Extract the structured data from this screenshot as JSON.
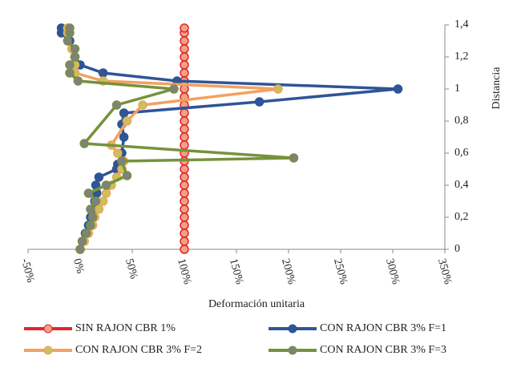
{
  "chart_data": {
    "type": "line",
    "xlabel": "Deformación unitaria",
    "ylabel": "Distancia",
    "xlim": [
      -50,
      350
    ],
    "xticks": [
      {
        "value": -50,
        "label": "-50%"
      },
      {
        "value": 0,
        "label": "0%"
      },
      {
        "value": 50,
        "label": "50%"
      },
      {
        "value": 100,
        "label": "100%"
      },
      {
        "value": 150,
        "label": "150%"
      },
      {
        "value": 200,
        "label": "200%"
      },
      {
        "value": 250,
        "label": "250%"
      },
      {
        "value": 300,
        "label": "300%"
      },
      {
        "value": 350,
        "label": "350%"
      }
    ],
    "ylim": [
      0,
      1.4
    ],
    "yticks": [
      0,
      {
        "value": 0.2,
        "label": "0,2"
      },
      {
        "value": 0.4,
        "label": "0,4"
      },
      {
        "value": 0.6,
        "label": "0,6"
      },
      {
        "value": 0.8,
        "label": "0,8"
      },
      1,
      {
        "value": 1.2,
        "label": "1,2"
      },
      {
        "value": 1.4,
        "label": "1,4"
      }
    ],
    "legend": "bottom",
    "series": [
      {
        "name": "SIN RAJON CBR  1%",
        "color": "#e3262b",
        "marker_color": "#f2a184",
        "x": [
          100,
          100,
          100,
          100,
          100,
          100,
          100,
          100,
          100,
          100,
          100,
          100,
          100,
          100,
          100,
          100,
          100,
          100,
          100,
          100,
          100,
          100,
          100,
          100,
          100,
          100,
          100,
          100,
          100
        ],
        "y": [
          0,
          0.05,
          0.1,
          0.15,
          0.2,
          0.25,
          0.3,
          0.35,
          0.4,
          0.45,
          0.5,
          0.55,
          0.6,
          0.65,
          0.7,
          0.75,
          0.8,
          0.85,
          0.9,
          0.95,
          1,
          1.05,
          1.1,
          1.15,
          1.2,
          1.25,
          1.3,
          1.35,
          1.38
        ]
      },
      {
        "name": "CON RAJON CBR 3% F=1",
        "color": "#2e5596",
        "marker_color": "#2e5596",
        "x": [
          0,
          2,
          5,
          8,
          10,
          12,
          14,
          16,
          15,
          18,
          35,
          36,
          40,
          42,
          40,
          42,
          172,
          305,
          93,
          22,
          0,
          -5,
          -10,
          -18,
          -18
        ],
        "y": [
          0,
          0.05,
          0.1,
          0.15,
          0.2,
          0.25,
          0.3,
          0.35,
          0.4,
          0.45,
          0.5,
          0.53,
          0.6,
          0.7,
          0.78,
          0.85,
          0.92,
          1,
          1.05,
          1.1,
          1.15,
          1.2,
          1.3,
          1.35,
          1.38
        ]
      },
      {
        "name": "CON RAJON CBR 3% F=2",
        "color": "#f3a15f",
        "marker_color": "#c4c45a",
        "x": [
          0,
          4,
          8,
          12,
          14,
          18,
          22,
          25,
          30,
          35,
          40,
          42,
          36,
          30,
          45,
          60,
          190,
          22,
          -5,
          -5,
          -8,
          -12,
          -12
        ],
        "y": [
          0,
          0.05,
          0.1,
          0.15,
          0.2,
          0.25,
          0.3,
          0.35,
          0.4,
          0.45,
          0.5,
          0.55,
          0.6,
          0.65,
          0.8,
          0.9,
          1,
          1.05,
          1.1,
          1.15,
          1.25,
          1.35,
          1.38
        ]
      },
      {
        "name": "CON RAJON CBR 3% F=3",
        "color": "#76923c",
        "marker_color": "#808080",
        "x": [
          0,
          2,
          6,
          10,
          12,
          10,
          15,
          8,
          25,
          45,
          40,
          205,
          4,
          35,
          90,
          -2,
          -10,
          -10,
          -5,
          -5,
          -12,
          -10,
          -10
        ],
        "y": [
          0,
          0.05,
          0.1,
          0.15,
          0.2,
          0.25,
          0.3,
          0.35,
          0.4,
          0.46,
          0.55,
          0.57,
          0.66,
          0.9,
          1,
          1.05,
          1.1,
          1.15,
          1.2,
          1.25,
          1.3,
          1.35,
          1.38
        ]
      }
    ]
  }
}
